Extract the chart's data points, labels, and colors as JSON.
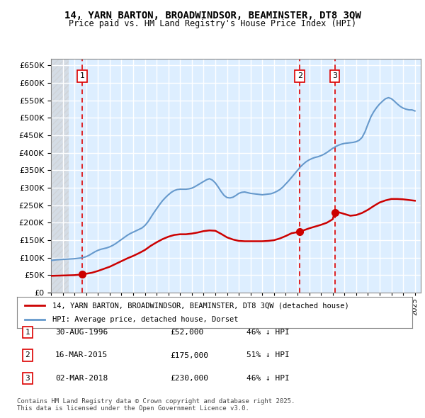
{
  "title": "14, YARN BARTON, BROADWINDSOR, BEAMINSTER, DT8 3QW",
  "subtitle": "Price paid vs. HM Land Registry's House Price Index (HPI)",
  "ylabel": "",
  "ylim": [
    0,
    670000
  ],
  "yticks": [
    0,
    50000,
    100000,
    150000,
    200000,
    250000,
    300000,
    350000,
    400000,
    450000,
    500000,
    550000,
    600000,
    650000
  ],
  "xlim_start": 1994.0,
  "xlim_end": 2025.5,
  "background_color": "#ddeeff",
  "plot_bg": "#ddeeff",
  "grid_color": "#ffffff",
  "hatch_color": "#cccccc",
  "red_line_color": "#cc0000",
  "blue_line_color": "#6699cc",
  "sale_points": [
    {
      "year": 1996.667,
      "price": 52000,
      "label": "1"
    },
    {
      "year": 2015.2,
      "price": 175000,
      "label": "2"
    },
    {
      "year": 2018.17,
      "price": 230000,
      "label": "3"
    }
  ],
  "vline_color": "#dd0000",
  "legend_label_red": "14, YARN BARTON, BROADWINDSOR, BEAMINSTER, DT8 3QW (detached house)",
  "legend_label_blue": "HPI: Average price, detached house, Dorset",
  "table_data": [
    {
      "num": "1",
      "date": "30-AUG-1996",
      "price": "£52,000",
      "hpi": "46% ↓ HPI"
    },
    {
      "num": "2",
      "date": "16-MAR-2015",
      "price": "£175,000",
      "hpi": "51% ↓ HPI"
    },
    {
      "num": "3",
      "date": "02-MAR-2018",
      "price": "£230,000",
      "hpi": "46% ↓ HPI"
    }
  ],
  "footer": "Contains HM Land Registry data © Crown copyright and database right 2025.\nThis data is licensed under the Open Government Licence v3.0.",
  "hpi_data_x": [
    1994.0,
    1994.25,
    1994.5,
    1994.75,
    1995.0,
    1995.25,
    1995.5,
    1995.75,
    1996.0,
    1996.25,
    1996.5,
    1996.75,
    1997.0,
    1997.25,
    1997.5,
    1997.75,
    1998.0,
    1998.25,
    1998.5,
    1998.75,
    1999.0,
    1999.25,
    1999.5,
    1999.75,
    2000.0,
    2000.25,
    2000.5,
    2000.75,
    2001.0,
    2001.25,
    2001.5,
    2001.75,
    2002.0,
    2002.25,
    2002.5,
    2002.75,
    2003.0,
    2003.25,
    2003.5,
    2003.75,
    2004.0,
    2004.25,
    2004.5,
    2004.75,
    2005.0,
    2005.25,
    2005.5,
    2005.75,
    2006.0,
    2006.25,
    2006.5,
    2006.75,
    2007.0,
    2007.25,
    2007.5,
    2007.75,
    2008.0,
    2008.25,
    2008.5,
    2008.75,
    2009.0,
    2009.25,
    2009.5,
    2009.75,
    2010.0,
    2010.25,
    2010.5,
    2010.75,
    2011.0,
    2011.25,
    2011.5,
    2011.75,
    2012.0,
    2012.25,
    2012.5,
    2012.75,
    2013.0,
    2013.25,
    2013.5,
    2013.75,
    2014.0,
    2014.25,
    2014.5,
    2014.75,
    2015.0,
    2015.25,
    2015.5,
    2015.75,
    2016.0,
    2016.25,
    2016.5,
    2016.75,
    2017.0,
    2017.25,
    2017.5,
    2017.75,
    2018.0,
    2018.25,
    2018.5,
    2018.75,
    2019.0,
    2019.25,
    2019.5,
    2019.75,
    2020.0,
    2020.25,
    2020.5,
    2020.75,
    2021.0,
    2021.25,
    2021.5,
    2021.75,
    2022.0,
    2022.25,
    2022.5,
    2022.75,
    2023.0,
    2023.25,
    2023.5,
    2023.75,
    2024.0,
    2024.25,
    2024.5,
    2024.75,
    2025.0
  ],
  "hpi_data_y": [
    92000,
    93000,
    94000,
    94500,
    95000,
    95500,
    96000,
    96500,
    97000,
    98000,
    99000,
    100500,
    103000,
    107000,
    112000,
    117000,
    121000,
    124000,
    126000,
    128000,
    131000,
    135000,
    140000,
    146000,
    152000,
    158000,
    164000,
    169000,
    173000,
    177000,
    181000,
    185000,
    192000,
    202000,
    215000,
    228000,
    240000,
    252000,
    263000,
    272000,
    280000,
    287000,
    292000,
    295000,
    296000,
    296000,
    296000,
    297000,
    299000,
    303000,
    308000,
    313000,
    318000,
    323000,
    326000,
    322000,
    314000,
    302000,
    289000,
    278000,
    272000,
    271000,
    273000,
    278000,
    284000,
    287000,
    288000,
    286000,
    284000,
    283000,
    282000,
    281000,
    280000,
    281000,
    282000,
    283000,
    286000,
    290000,
    295000,
    302000,
    311000,
    320000,
    330000,
    340000,
    350000,
    360000,
    368000,
    375000,
    380000,
    384000,
    387000,
    389000,
    392000,
    396000,
    401000,
    407000,
    413000,
    418000,
    422000,
    425000,
    427000,
    428000,
    429000,
    430000,
    432000,
    436000,
    444000,
    460000,
    482000,
    503000,
    518000,
    530000,
    540000,
    548000,
    555000,
    558000,
    555000,
    548000,
    540000,
    533000,
    528000,
    525000,
    523000,
    523000,
    520000
  ],
  "red_data_x": [
    1994.0,
    1994.5,
    1995.0,
    1995.5,
    1996.0,
    1996.667,
    1997.0,
    1997.5,
    1998.0,
    1998.5,
    1999.0,
    1999.5,
    2000.0,
    2000.5,
    2001.0,
    2001.5,
    2002.0,
    2002.5,
    2003.0,
    2003.5,
    2004.0,
    2004.5,
    2005.0,
    2005.5,
    2006.0,
    2006.5,
    2007.0,
    2007.5,
    2008.0,
    2008.5,
    2009.0,
    2009.5,
    2010.0,
    2010.5,
    2011.0,
    2011.5,
    2012.0,
    2012.5,
    2013.0,
    2013.5,
    2014.0,
    2014.5,
    2015.0,
    2015.2,
    2015.5,
    2016.0,
    2016.5,
    2017.0,
    2017.5,
    2018.0,
    2018.17,
    2018.5,
    2019.0,
    2019.5,
    2020.0,
    2020.5,
    2021.0,
    2021.5,
    2022.0,
    2022.5,
    2023.0,
    2023.5,
    2024.0,
    2024.5,
    2025.0
  ],
  "red_data_y": [
    48000,
    48500,
    49000,
    49500,
    50000,
    52000,
    54000,
    57000,
    62000,
    68000,
    74000,
    82000,
    90000,
    98000,
    105000,
    113000,
    122000,
    134000,
    144000,
    153000,
    160000,
    165000,
    167000,
    167000,
    169000,
    172000,
    176000,
    178000,
    177000,
    168000,
    158000,
    152000,
    148000,
    147000,
    147000,
    147000,
    147000,
    148000,
    150000,
    155000,
    162000,
    170000,
    173000,
    175000,
    178000,
    184000,
    189000,
    194000,
    200000,
    210000,
    230000,
    230000,
    225000,
    220000,
    222000,
    228000,
    237000,
    248000,
    258000,
    264000,
    268000,
    268000,
    267000,
    265000,
    263000
  ]
}
